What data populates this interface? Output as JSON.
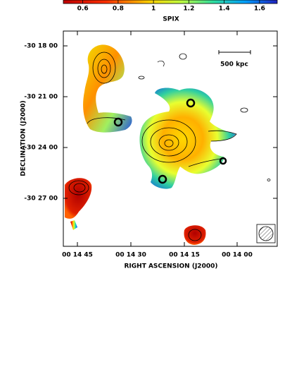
{
  "chart_data": {
    "type": "image",
    "colorbar": {
      "label": "SPIX",
      "ticks": [
        0.6,
        0.8,
        1,
        1.2,
        1.4,
        1.6
      ],
      "range": [
        0.49,
        1.7
      ]
    },
    "x_label": "RIGHT ASCENSION  (J2000)",
    "y_label": "DECLINATION  (J2000)",
    "x_ticks": [
      "00 14 45",
      "00 14 30",
      "00 14 15",
      "00 14 00"
    ],
    "y_ticks": [
      "-30 18 00",
      "-30 21 00",
      "-30 24 00",
      "-30 27 00"
    ],
    "scale_bar": "500 kpc"
  }
}
